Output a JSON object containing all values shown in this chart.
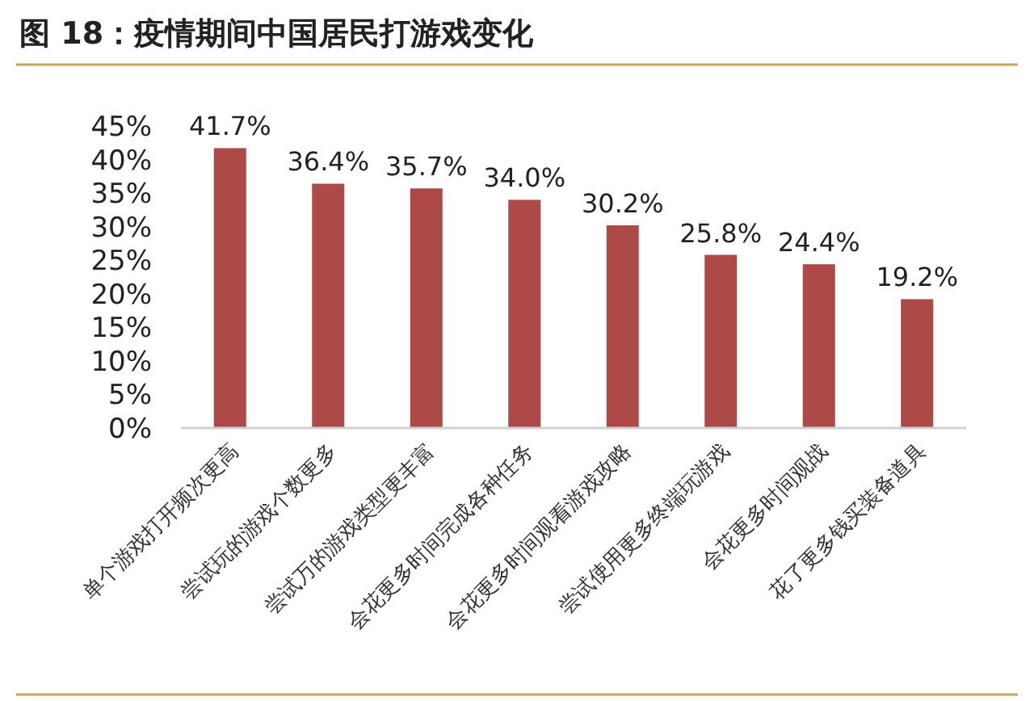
{
  "chart_data": {
    "type": "bar",
    "title": "图 18：疫情期间中国居民打游戏变化",
    "categories": [
      "单个游戏打开频次更高",
      "尝试玩的游戏个数更多",
      "尝试万的游戏类型更丰富",
      "会花更多时间完成各种任务",
      "会花更多时间观看游戏攻略",
      "尝试使用更多终端玩游戏",
      "会花更多时间观战",
      "花了更多钱买装备道具"
    ],
    "values": [
      41.7,
      36.4,
      35.7,
      34.0,
      30.2,
      25.8,
      24.4,
      19.2
    ],
    "value_labels": [
      "41.7%",
      "36.4%",
      "35.7%",
      "34.0%",
      "30.2%",
      "25.8%",
      "24.4%",
      "19.2%"
    ],
    "color": "#ad4a48",
    "ylim": [
      0,
      45
    ],
    "yticks": [
      {
        "value": 0,
        "label": "0%"
      },
      {
        "value": 5,
        "label": "5%"
      },
      {
        "value": 10,
        "label": "10%"
      },
      {
        "value": 15,
        "label": "15%"
      },
      {
        "value": 20,
        "label": "20%"
      },
      {
        "value": 25,
        "label": "25%"
      },
      {
        "value": 30,
        "label": "30%"
      },
      {
        "value": 35,
        "label": "35%"
      },
      {
        "value": 40,
        "label": "40%"
      },
      {
        "value": 45,
        "label": "45%"
      }
    ],
    "grid": false
  }
}
